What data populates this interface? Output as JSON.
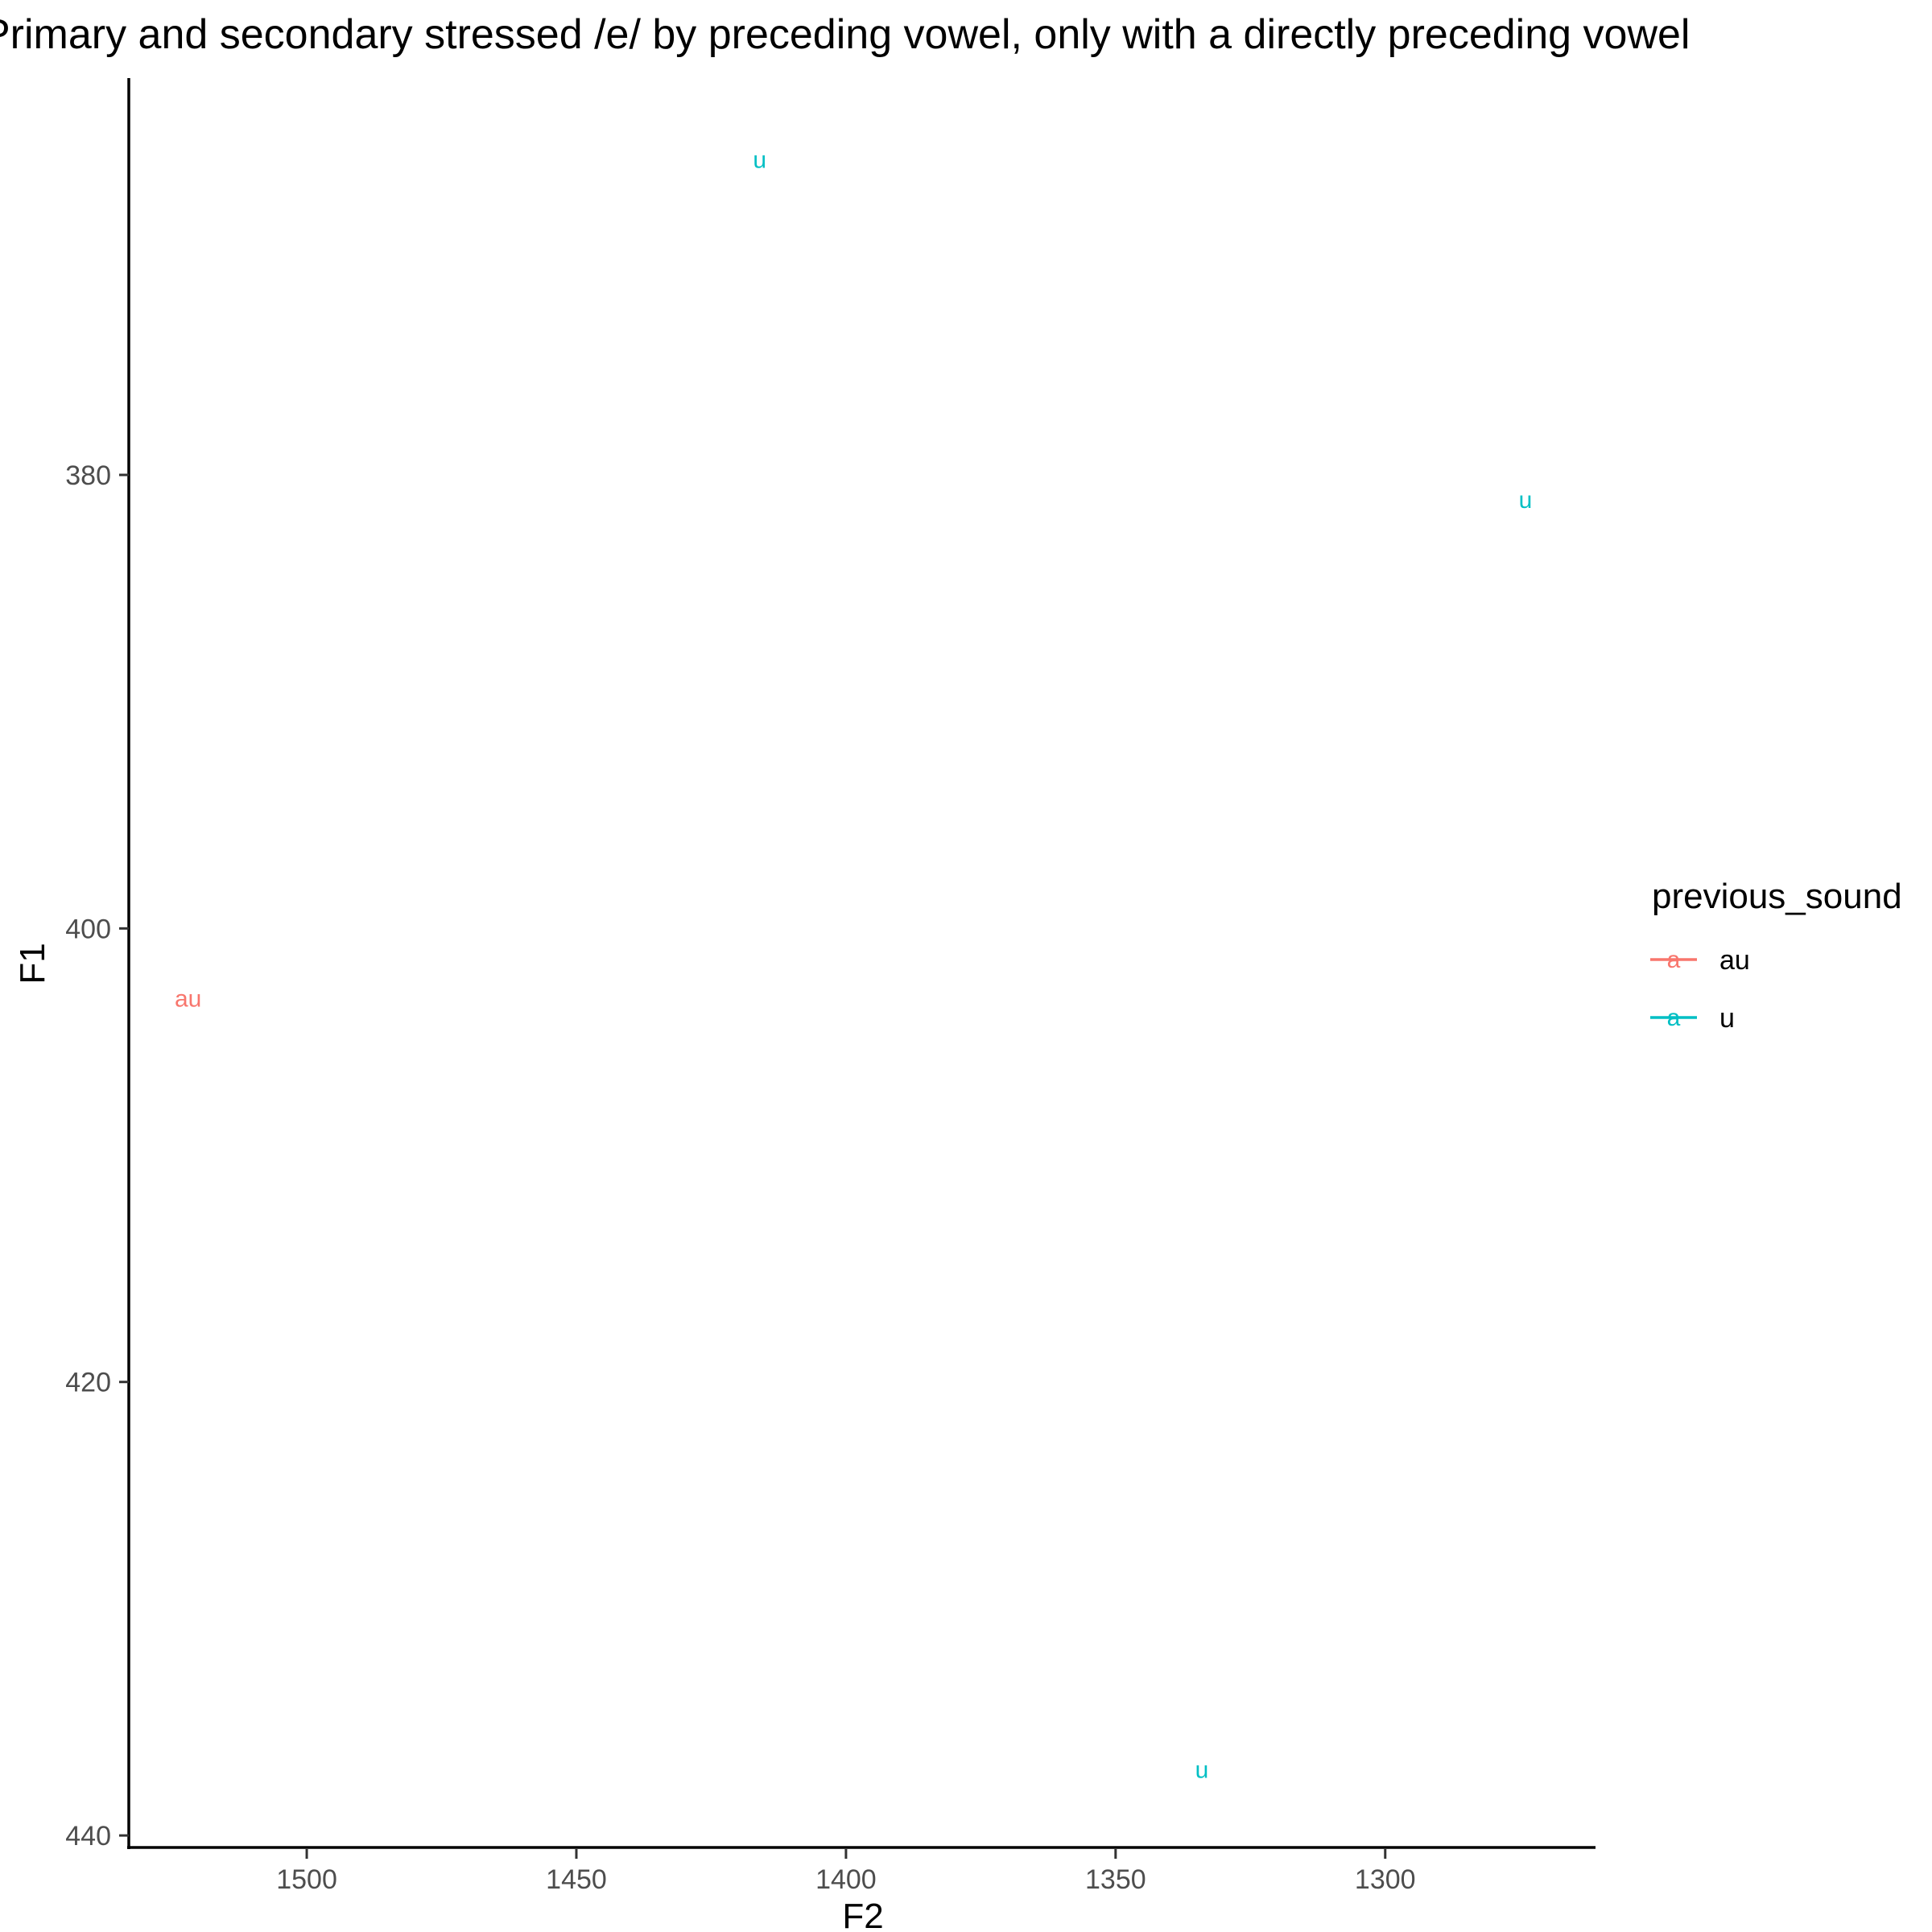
{
  "chart_data": {
    "type": "scatter",
    "title": "Primary and secondary stressed /e/ by preceding vowel, only with a directly preceding vowel",
    "xlabel": "F2",
    "ylabel": "F1",
    "x_reversed": true,
    "y_reversed": true,
    "xlim": [
      1533,
      1261
    ],
    "ylim": [
      362.5,
      440.6
    ],
    "x_ticks": [
      1500,
      1450,
      1400,
      1350,
      1300
    ],
    "y_ticks": [
      380,
      400,
      420,
      440
    ],
    "x_tick_labels": [
      "1500",
      "1450",
      "1400",
      "1350",
      "1300"
    ],
    "y_tick_labels": [
      "380",
      "400",
      "420",
      "440"
    ],
    "grid": false,
    "legend": {
      "title": "previous_sound",
      "position": "right",
      "key_glyph": "a",
      "entries": [
        {
          "label": "au",
          "color": "#F8766D"
        },
        {
          "label": "u",
          "color": "#00BFC4"
        }
      ]
    },
    "series": [
      {
        "name": "au",
        "color": "#F8766D",
        "points": [
          {
            "x": 1522,
            "y": 403.1,
            "label": "au"
          }
        ]
      },
      {
        "name": "u",
        "color": "#00BFC4",
        "points": [
          {
            "x": 1416,
            "y": 366.1,
            "label": "u"
          },
          {
            "x": 1274,
            "y": 381.1,
            "label": "u"
          },
          {
            "x": 1334,
            "y": 437.1,
            "label": "u"
          }
        ]
      }
    ]
  }
}
